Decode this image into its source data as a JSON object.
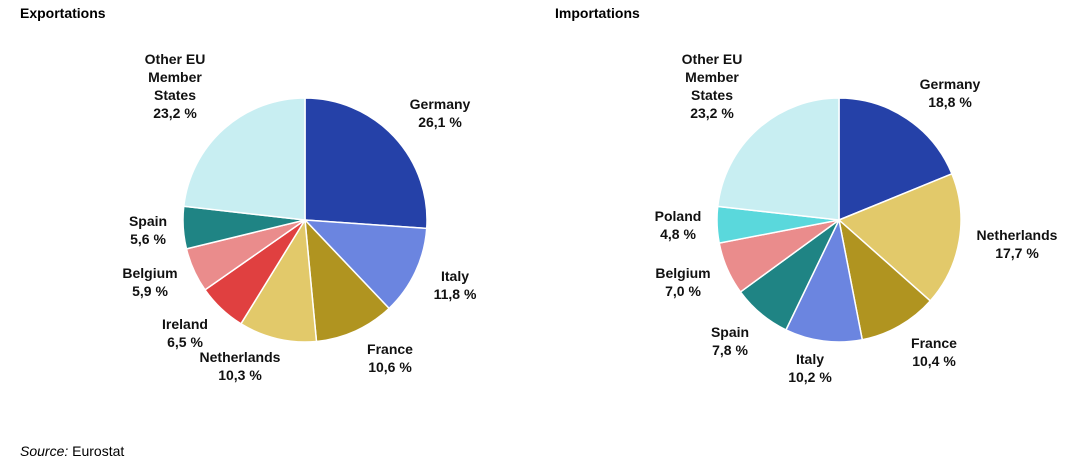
{
  "chart_data": [
    {
      "type": "pie",
      "title": "Exportations",
      "categories": [
        "Germany",
        "Italy",
        "France",
        "Netherlands",
        "Ireland",
        "Belgium",
        "Spain",
        "Other EU Member States"
      ],
      "values": [
        26.1,
        11.8,
        10.6,
        10.3,
        6.5,
        5.9,
        5.6,
        23.2
      ],
      "value_labels": [
        "26,1 %",
        "11,8 %",
        "10,6 %",
        "10,3 %",
        "6,5 %",
        "5,9 %",
        "5,6 %",
        "23,2 %"
      ],
      "colors": [
        "#2541a8",
        "#6b85e0",
        "#b09420",
        "#e2c96a",
        "#e04040",
        "#ea8c8c",
        "#1f8484",
        "#c8eef2"
      ]
    },
    {
      "type": "pie",
      "title": "Importations",
      "categories": [
        "Germany",
        "Netherlands",
        "France",
        "Italy",
        "Spain",
        "Belgium",
        "Poland",
        "Other EU Member States"
      ],
      "values": [
        18.8,
        17.7,
        10.4,
        10.2,
        7.8,
        7.0,
        4.8,
        23.2
      ],
      "value_labels": [
        "18,8 %",
        "17,7 %",
        "10,4 %",
        "10,2 %",
        "7,8 %",
        "7,0 %",
        "4,8 %",
        "23,2 %"
      ],
      "colors": [
        "#2541a8",
        "#e2c96a",
        "#b09420",
        "#6b85e0",
        "#1f8484",
        "#ea8c8c",
        "#5ad8dc",
        "#c8eef2"
      ]
    }
  ],
  "source": {
    "label": "Source:",
    "text": "Eurostat"
  }
}
